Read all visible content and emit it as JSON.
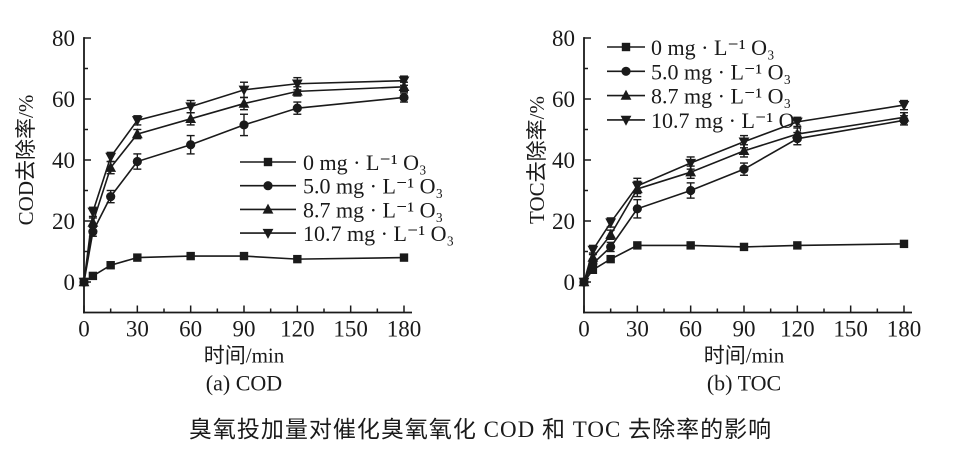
{
  "caption": "臭氧投加量对催化臭氧氧化 COD 和 TOC 去除率的影响",
  "colors": {
    "line": "#1a1a1a",
    "background": "#ffffff"
  },
  "chart_data": [
    {
      "type": "line",
      "title": "(a) COD",
      "xlabel": "时间/min",
      "ylabel": "COD去除率/%",
      "x": [
        0,
        5,
        15,
        30,
        60,
        90,
        120,
        180
      ],
      "x_ticks": [
        0,
        30,
        60,
        90,
        120,
        150,
        180
      ],
      "y_ticks": [
        0,
        20,
        40,
        60,
        80
      ],
      "xlim": [
        0,
        184
      ],
      "ylim": [
        -10,
        80
      ],
      "grid": false,
      "legend_position": "inside-middle-right",
      "series": [
        {
          "name": "0 mg · L⁻¹ O₃",
          "marker": "square",
          "values": [
            0,
            2,
            5.5,
            8,
            8.5,
            8.5,
            7.5,
            8
          ],
          "errors": [
            0,
            0,
            0,
            0,
            0,
            0,
            0,
            0
          ]
        },
        {
          "name": "5.0 mg · L⁻¹ O₃",
          "marker": "circle",
          "values": [
            0,
            16.5,
            28,
            39.5,
            45,
            51.5,
            57,
            60.5
          ],
          "errors": [
            1,
            1.5,
            2,
            2.5,
            3,
            3.5,
            2,
            1.5
          ]
        },
        {
          "name": "8.7 mg · L⁻¹ O₃",
          "marker": "triangle-up",
          "values": [
            0,
            19.5,
            37.5,
            48.5,
            53.5,
            58.5,
            62.5,
            64
          ],
          "errors": [
            1,
            1.5,
            2,
            1.5,
            2,
            2,
            1.5,
            1.5
          ]
        },
        {
          "name": "10.7 mg · L⁻¹ O₃",
          "marker": "triangle-down",
          "values": [
            0,
            23,
            41,
            53,
            57.5,
            63,
            65,
            66
          ],
          "errors": [
            1,
            1.5,
            1.5,
            1.5,
            2,
            2.5,
            2,
            1.5
          ]
        }
      ]
    },
    {
      "type": "line",
      "title": "(b) TOC",
      "xlabel": "时间/min",
      "ylabel": "TOC去除率/%",
      "x": [
        0,
        5,
        15,
        30,
        60,
        90,
        120,
        180
      ],
      "x_ticks": [
        0,
        30,
        60,
        90,
        120,
        150,
        180
      ],
      "y_ticks": [
        0,
        20,
        40,
        60,
        80
      ],
      "xlim": [
        0,
        184
      ],
      "ylim": [
        -10,
        80
      ],
      "grid": false,
      "legend_position": "inside-top-left",
      "series": [
        {
          "name": "0 mg · L⁻¹ O₃",
          "marker": "square",
          "values": [
            0,
            4,
            7.5,
            12,
            12,
            11.5,
            12,
            12.5
          ],
          "errors": [
            0,
            0,
            0,
            0,
            0,
            0,
            0,
            0
          ]
        },
        {
          "name": "5.0 mg · L⁻¹ O₃",
          "marker": "circle",
          "values": [
            0,
            6,
            11.5,
            24,
            30,
            37,
            47,
            53
          ],
          "errors": [
            0.8,
            1.5,
            1.5,
            3,
            2.5,
            2,
            2,
            1.5
          ]
        },
        {
          "name": "8.7 mg · L⁻¹ O₃",
          "marker": "triangle-up",
          "values": [
            0,
            8,
            15.5,
            30.5,
            36,
            43,
            48.5,
            54
          ],
          "errors": [
            0.8,
            1.5,
            1.5,
            2.5,
            2,
            2,
            2,
            1.5
          ]
        },
        {
          "name": "10.7 mg · L⁻¹ O₃",
          "marker": "triangle-down",
          "values": [
            0,
            10.5,
            19.5,
            31.5,
            39,
            46,
            52.5,
            58
          ],
          "errors": [
            0.8,
            1.5,
            1.5,
            2.5,
            2,
            2,
            1.5,
            1.5
          ]
        }
      ]
    }
  ]
}
